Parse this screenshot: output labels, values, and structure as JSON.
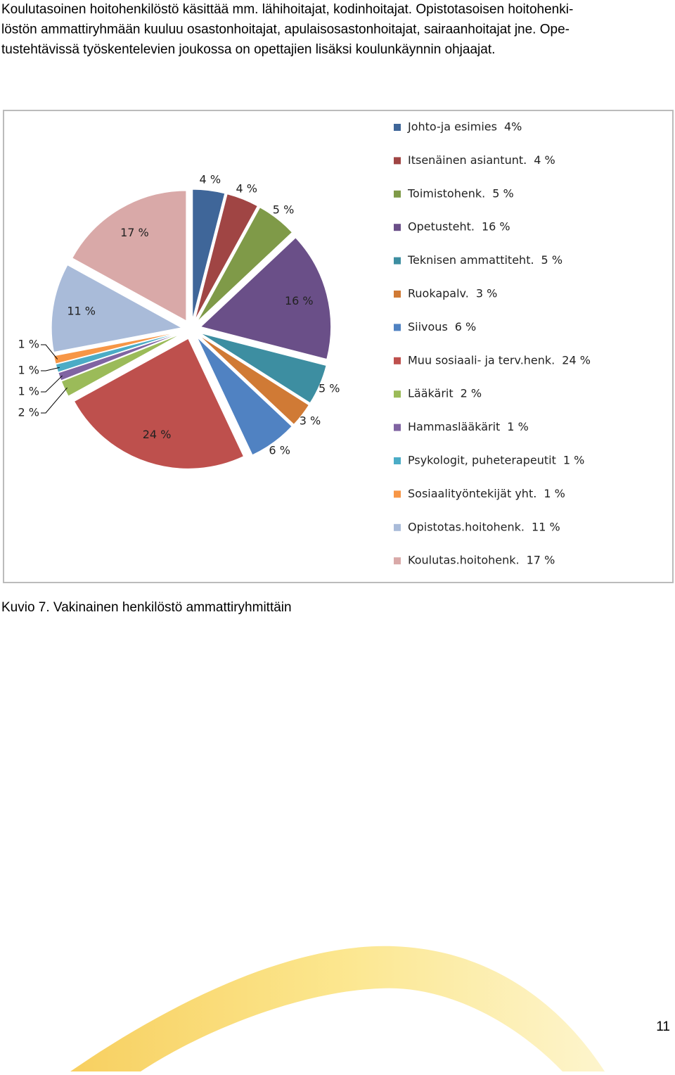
{
  "body": {
    "lines": [
      "Koulutasoinen hoitohenkilöstö käsittää mm. lähihoitajat, kodinhoitajat. Opistotasoisen hoitohenki-",
      "löstön ammattiryhmään kuuluu osastonhoitajat, apulaisosastonhoitajat, sairaanhoitajat jne. Ope-",
      "tustehtävissä työskentelevien joukossa on opettajien lisäksi koulunkäynnin ohjaajat."
    ]
  },
  "chart_data": {
    "type": "pie",
    "categories": [
      "Johto-ja esimies",
      "Itsenäinen asiantunt.",
      "Toimistohenk.",
      "Opetusteht.",
      "Teknisen ammattiteht.",
      "Ruokapalv.",
      "Siivous",
      "Muu sosiaali- ja terv.henk.",
      "Lääkärit",
      "Hammaslääkärit",
      "Psykologit, puheterapeutit",
      "Sosiaalityöntekijät yht.",
      "Opistotas.hoitohenk.",
      "Koulutas.hoitohenk."
    ],
    "values": [
      4,
      4,
      5,
      16,
      5,
      3,
      6,
      24,
      2,
      1,
      1,
      1,
      11,
      17
    ],
    "value_labels": [
      "4 %",
      "4 %",
      "5 %",
      "16 %",
      "5 %",
      "3 %",
      "6 %",
      "24 %",
      "2 %",
      "1 %",
      "1 %",
      "1 %",
      "11 %",
      "17 %"
    ],
    "legend_value_labels": [
      "4%",
      "4 %",
      "5 %",
      "16 %",
      "5 %",
      "3 %",
      "6 %",
      "24 %",
      "2 %",
      "1 %",
      "1 %",
      "1 %",
      "11 %",
      "17 %"
    ],
    "colors": [
      "#3f6699",
      "#a04544",
      "#7f9a48",
      "#6a4f88",
      "#3d8ea1",
      "#d07a35",
      "#5082c2",
      "#be504d",
      "#9bbb59",
      "#8064a2",
      "#4bacc6",
      "#f79646",
      "#a9bbd9",
      "#d9a9a8"
    ]
  },
  "caption": "Kuvio 7. Vakinainen henkilöstö ammattiryhmittäin",
  "page_number": "11"
}
